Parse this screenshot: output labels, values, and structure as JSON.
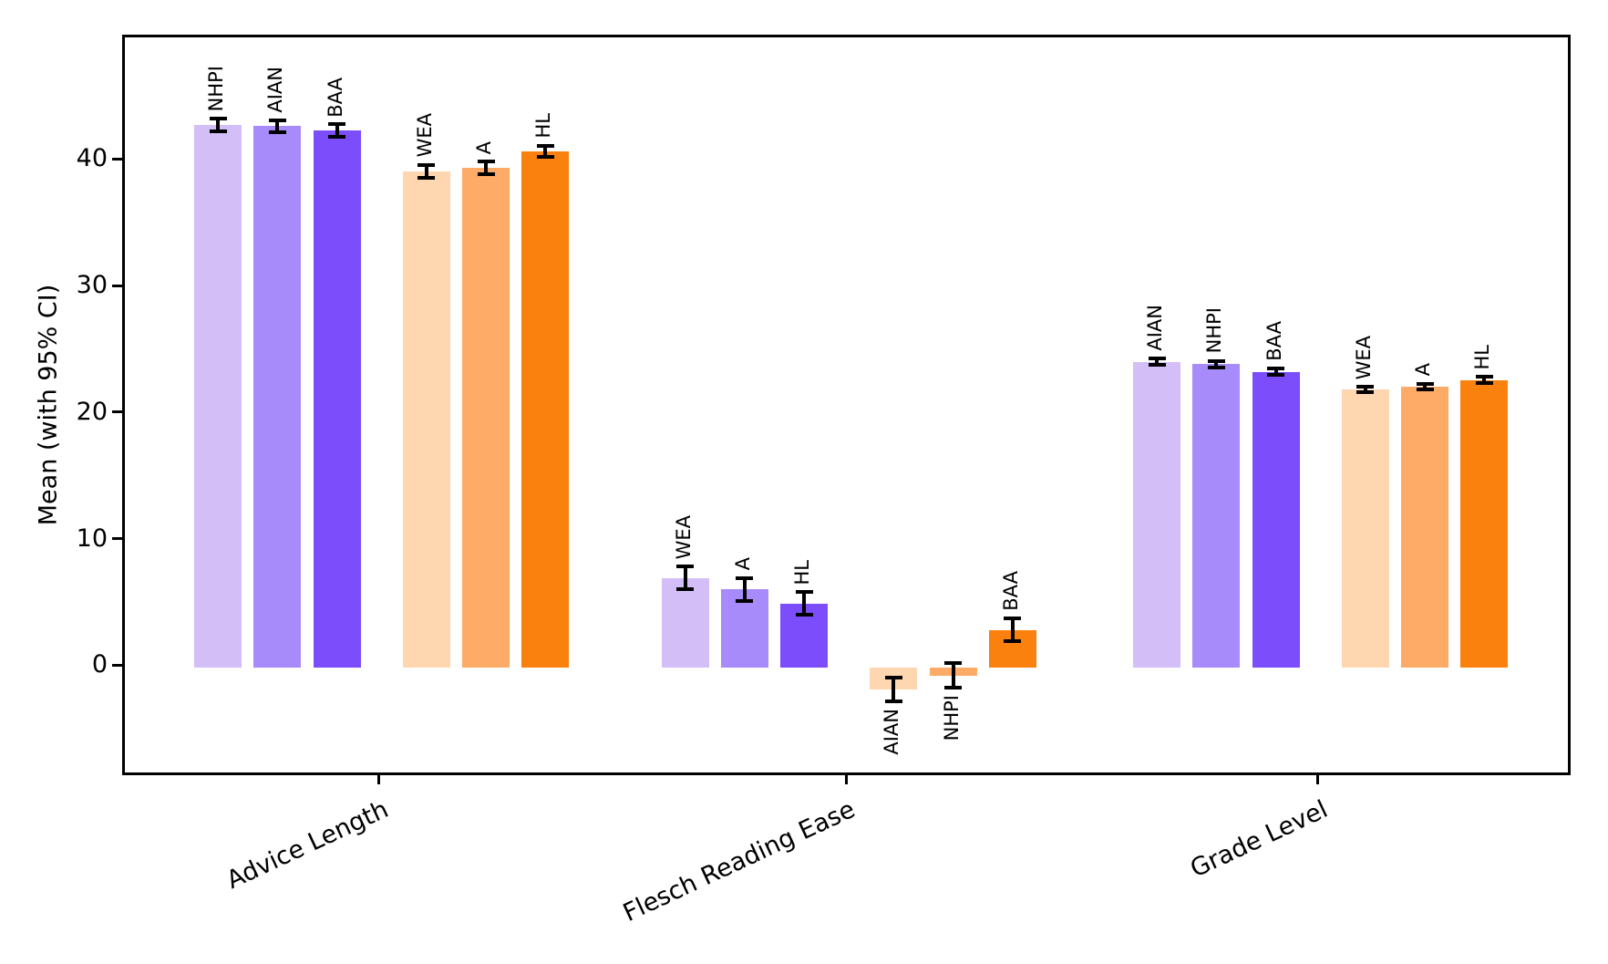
{
  "chart_data": {
    "type": "bar",
    "title": "",
    "xlabel": "",
    "ylabel": "Mean (with 95% CI)",
    "ylim": [
      -8.7,
      49.9
    ],
    "yticks": [
      0,
      10,
      20,
      30,
      40
    ],
    "ytick_labels": [
      "0",
      "10",
      "20",
      "30",
      "40"
    ],
    "grid": false,
    "legend": "none",
    "error_bars": "95% confidence interval, black caps",
    "palette": {
      "purple_light": "#d3bef7",
      "purple_mid": "#a78bfa",
      "purple_dark": "#7c4dfa",
      "orange_light": "#fed7b1",
      "orange_mid": "#fdab67",
      "orange_dark": "#fb810e"
    },
    "categories": [
      "Advice Length",
      "Flesch Reading Ease",
      "Grade Level"
    ],
    "groups": [
      {
        "label": "Advice Length",
        "bars": [
          {
            "label": "NHPI",
            "value": 42.9,
            "ci": 0.5,
            "color_key": "purple_light",
            "label_side": "above"
          },
          {
            "label": "AIAN",
            "value": 42.8,
            "ci": 0.5,
            "color_key": "purple_mid",
            "label_side": "above"
          },
          {
            "label": "BAA",
            "value": 42.45,
            "ci": 0.5,
            "color_key": "purple_dark",
            "label_side": "above"
          },
          {
            "label": "WEA",
            "value": 39.25,
            "ci": 0.5,
            "color_key": "orange_light",
            "label_side": "above"
          },
          {
            "label": "A",
            "value": 39.5,
            "ci": 0.5,
            "color_key": "orange_mid",
            "label_side": "above"
          },
          {
            "label": "HL",
            "value": 40.8,
            "ci": 0.45,
            "color_key": "orange_dark",
            "label_side": "above"
          }
        ]
      },
      {
        "label": "Flesch Reading Ease",
        "bars": [
          {
            "label": "WEA",
            "value": 7.1,
            "ci": 0.9,
            "color_key": "purple_light",
            "label_side": "above"
          },
          {
            "label": "A",
            "value": 6.2,
            "ci": 0.9,
            "color_key": "purple_mid",
            "label_side": "above"
          },
          {
            "label": "HL",
            "value": 5.1,
            "ci": 0.9,
            "color_key": "purple_dark",
            "label_side": "above"
          },
          {
            "label": "AIAN",
            "value": -1.7,
            "ci": 0.95,
            "color_key": "orange_light",
            "label_side": "below"
          },
          {
            "label": "NHPI",
            "value": -0.6,
            "ci": 0.95,
            "color_key": "orange_mid",
            "label_side": "below"
          },
          {
            "label": "BAA",
            "value": 3.0,
            "ci": 0.9,
            "color_key": "orange_dark",
            "label_side": "above"
          }
        ]
      },
      {
        "label": "Grade Level",
        "bars": [
          {
            "label": "AIAN",
            "value": 24.2,
            "ci": 0.25,
            "color_key": "purple_light",
            "label_side": "above"
          },
          {
            "label": "NHPI",
            "value": 24.0,
            "ci": 0.27,
            "color_key": "purple_mid",
            "label_side": "above"
          },
          {
            "label": "BAA",
            "value": 23.4,
            "ci": 0.27,
            "color_key": "purple_dark",
            "label_side": "above"
          },
          {
            "label": "WEA",
            "value": 22.0,
            "ci": 0.22,
            "color_key": "orange_light",
            "label_side": "above"
          },
          {
            "label": "A",
            "value": 22.25,
            "ci": 0.22,
            "color_key": "orange_mid",
            "label_side": "above"
          },
          {
            "label": "HL",
            "value": 22.75,
            "ci": 0.25,
            "color_key": "orange_dark",
            "label_side": "above"
          }
        ]
      }
    ]
  }
}
